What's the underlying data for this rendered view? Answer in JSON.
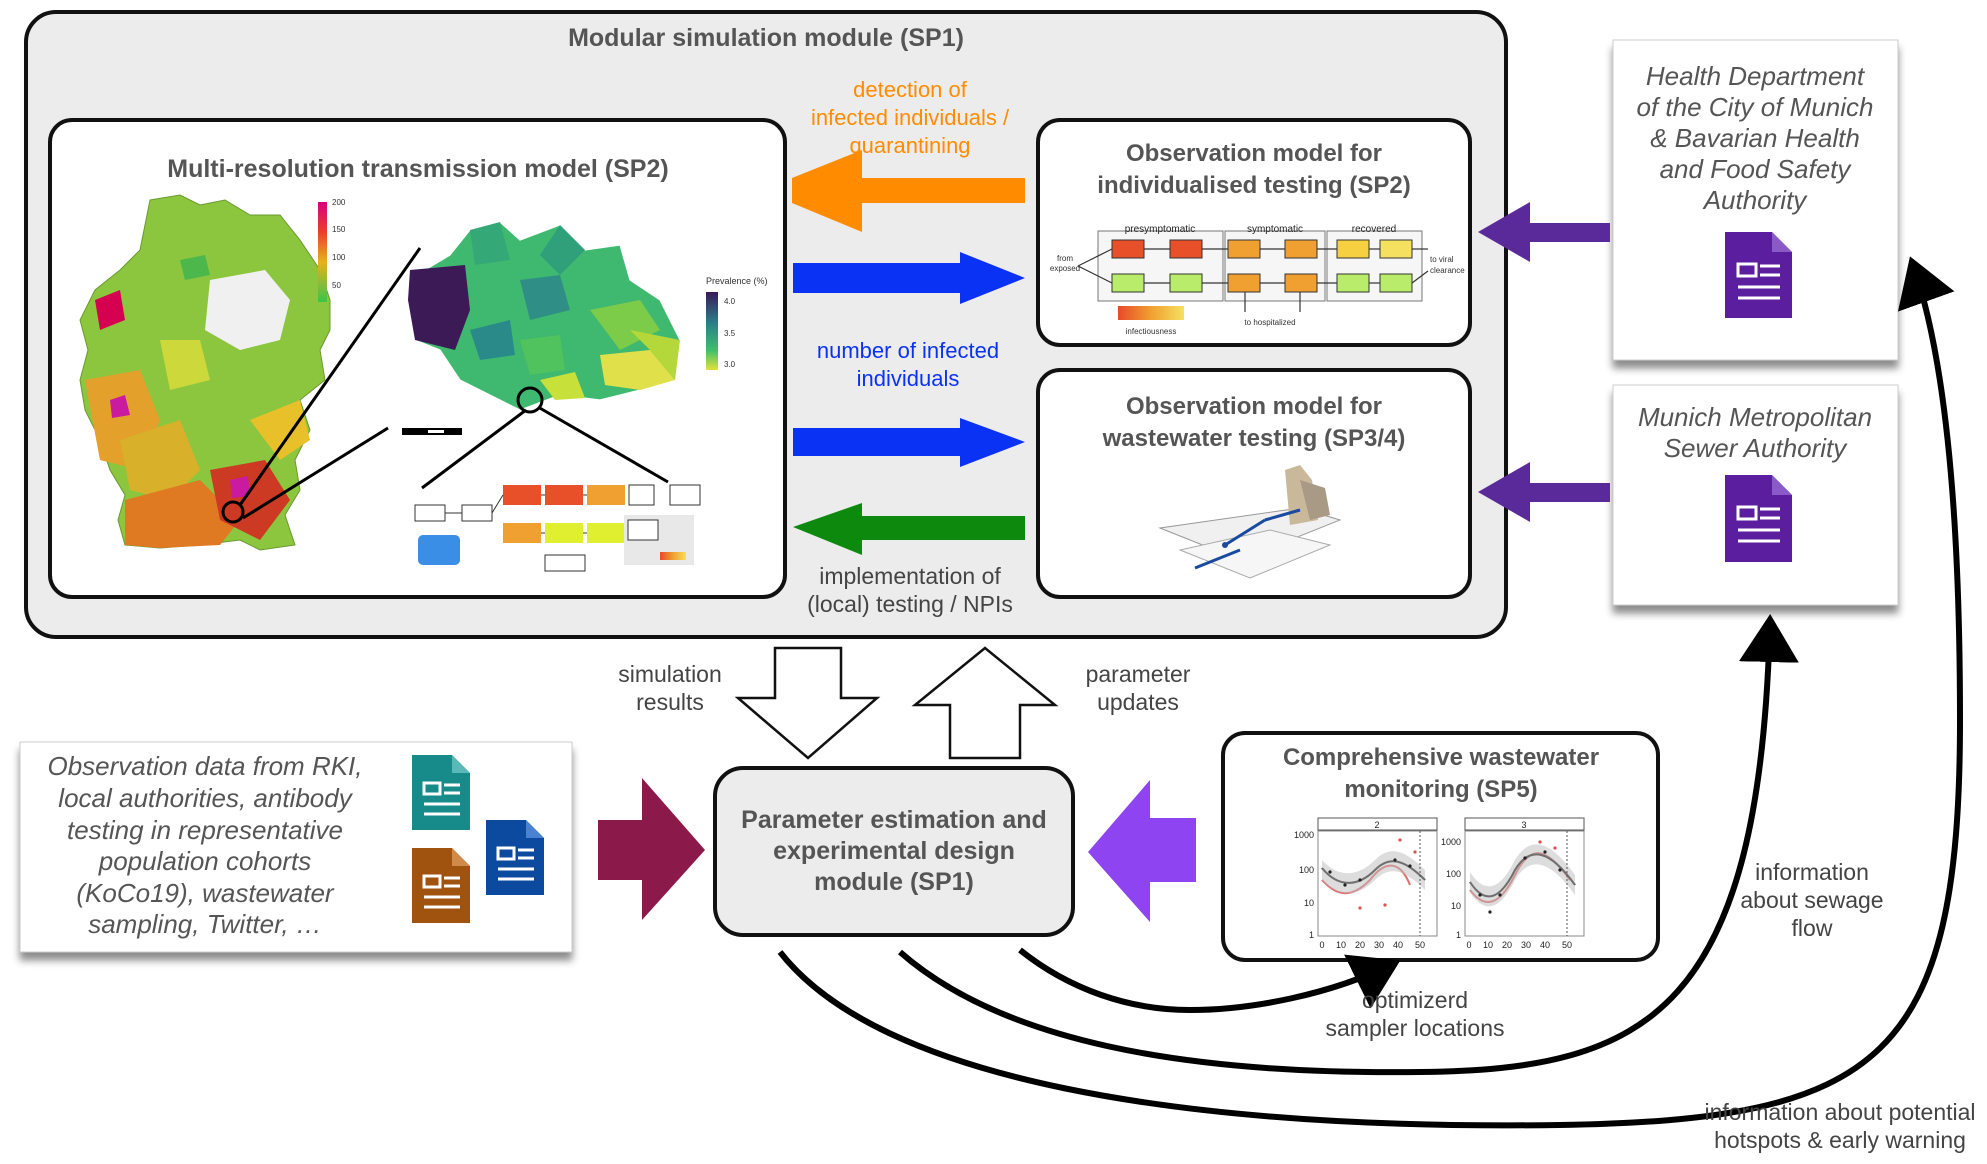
{
  "simulation_module": {
    "title": "Modular simulation module (SP1)"
  },
  "transmission_model": {
    "title": "Multi-resolution transmission model (SP2)",
    "germany_legend": {
      "ticks": [
        "200",
        "150",
        "100",
        "50"
      ]
    },
    "munich_legend": {
      "title": "Prevalence (%)",
      "ticks": [
        "4.0",
        "3.5",
        "3.0"
      ]
    }
  },
  "obs_individual": {
    "title_lines": [
      "Observation model for",
      "individualised testing (SP2)"
    ],
    "flow": {
      "stages": [
        "presymptomatic",
        "symptomatic",
        "recovered"
      ],
      "from_label": [
        "from",
        "exposed"
      ],
      "to_clearance": [
        "to viral",
        "clearance"
      ],
      "to_hospital": "to hospitalized",
      "infectiousness": "infectiousness"
    }
  },
  "obs_wastewater": {
    "title_lines": [
      "Observation model for",
      "wastewater testing (SP3/4)"
    ]
  },
  "arrow_labels": {
    "detection": [
      "detection of",
      "infected individuals /",
      "quarantining"
    ],
    "number_infected": [
      "number of infected",
      "individuals"
    ],
    "implementation": [
      "implementation of",
      "(local) testing / NPIs"
    ],
    "simulation_results": [
      "simulation",
      "results"
    ],
    "parameter_updates": [
      "parameter",
      "updates"
    ],
    "sampler_locations": [
      "optimizerd",
      "sampler locations"
    ],
    "sewage_flow": [
      "information",
      "about sewage",
      "flow"
    ],
    "hotspots": [
      "information about potential",
      "hotspots & early warning"
    ]
  },
  "health_department": {
    "lines": [
      "Health Department",
      "of the City of Munich",
      "& Bavarian Health",
      "and Food Safety",
      "Authority"
    ]
  },
  "sewer_authority": {
    "lines": [
      "Munich Metropolitan",
      "Sewer Authority"
    ]
  },
  "observation_data": {
    "lines": [
      "Observation data from RKI,",
      "local authorities, antibody",
      "testing in representative",
      "population cohorts",
      "(KoCo19), wastewater",
      "sampling, Twitter, …"
    ]
  },
  "parameter_estimation": {
    "lines": [
      "Parameter estimation and",
      "experimental design",
      "module (SP1)"
    ]
  },
  "wastewater_monitoring": {
    "title_lines": [
      "Comprehensive wastewater",
      "monitoring (SP5)"
    ],
    "panels": [
      "2",
      "3"
    ],
    "y_ticks": [
      "1000",
      "100",
      "10",
      "1"
    ],
    "x_ticks": [
      "0",
      "10",
      "20",
      "30",
      "40",
      "50"
    ]
  },
  "colors": {
    "orange": "#ff8c00",
    "blue": "#0a32f5",
    "green": "#0d8a0d",
    "purple_dark": "#5b2a9a",
    "maroon": "#8b1a4a",
    "violet": "#8e44f0",
    "doc_purple": "#5b1e9e",
    "doc_teal": "#178a8a",
    "doc_blue": "#0c4aa0",
    "doc_brown": "#a0520f"
  }
}
